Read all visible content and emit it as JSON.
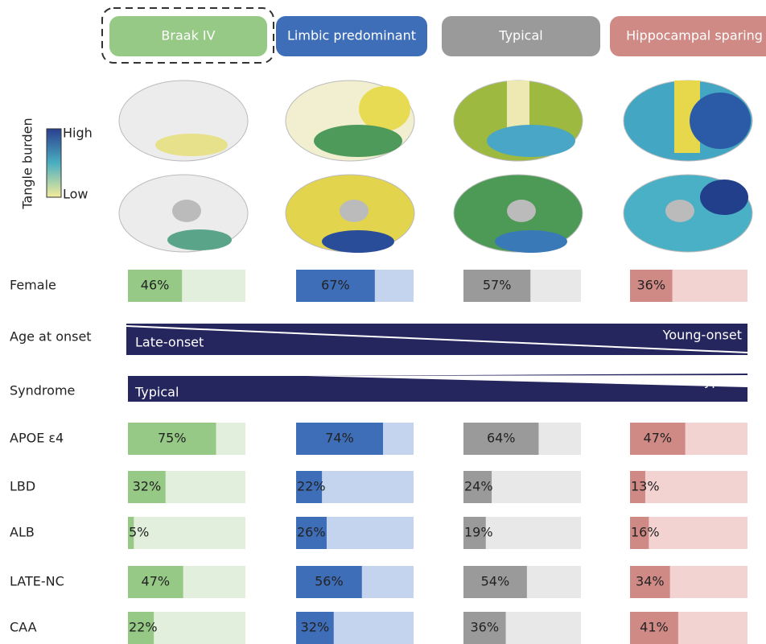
{
  "chart_data": {
    "type": "bar",
    "categories": [
      "Braak IV",
      "Limbic predominant",
      "Typical",
      "Hippocampal sparing"
    ],
    "colors": [
      "#95c985",
      "#3e6eb8",
      "#9a9a9a",
      "#cf8a86"
    ],
    "light_colors": [
      "#e2efdc",
      "#c4d4ee",
      "#e8e8e8",
      "#f3d3d1"
    ],
    "colorbar": {
      "title": "Tangle burden",
      "high": "High",
      "low": "Low"
    },
    "xlim": [
      0,
      100
    ],
    "series": [
      {
        "name": "Female",
        "values": [
          46,
          67,
          57,
          36
        ],
        "value_labels": [
          "46%",
          "67%",
          "57%",
          "36%"
        ]
      },
      {
        "name": "APOE ε4",
        "values": [
          75,
          74,
          64,
          47
        ],
        "value_labels": [
          "75%",
          "74%",
          "64%",
          "47%"
        ]
      },
      {
        "name": "LBD",
        "values": [
          32,
          22,
          24,
          13
        ],
        "value_labels": [
          "32%",
          "22%",
          "24%",
          "13%"
        ]
      },
      {
        "name": "ALB",
        "values": [
          5,
          26,
          19,
          16
        ],
        "value_labels": [
          "5%",
          "26%",
          "19%",
          "16%"
        ]
      },
      {
        "name": "LATE-NC",
        "values": [
          47,
          56,
          54,
          34
        ],
        "value_labels": [
          "47%",
          "56%",
          "54%",
          "34%"
        ]
      },
      {
        "name": "CAA",
        "values": [
          22,
          32,
          36,
          41
        ],
        "value_labels": [
          "22%",
          "32%",
          "36%",
          "41%"
        ]
      }
    ],
    "gradients": [
      {
        "name": "Age at onset",
        "start": "Late-onset",
        "end": "Young-onset"
      },
      {
        "name": "Syndrome",
        "start": "Typical",
        "end": "Atypical"
      }
    ]
  }
}
